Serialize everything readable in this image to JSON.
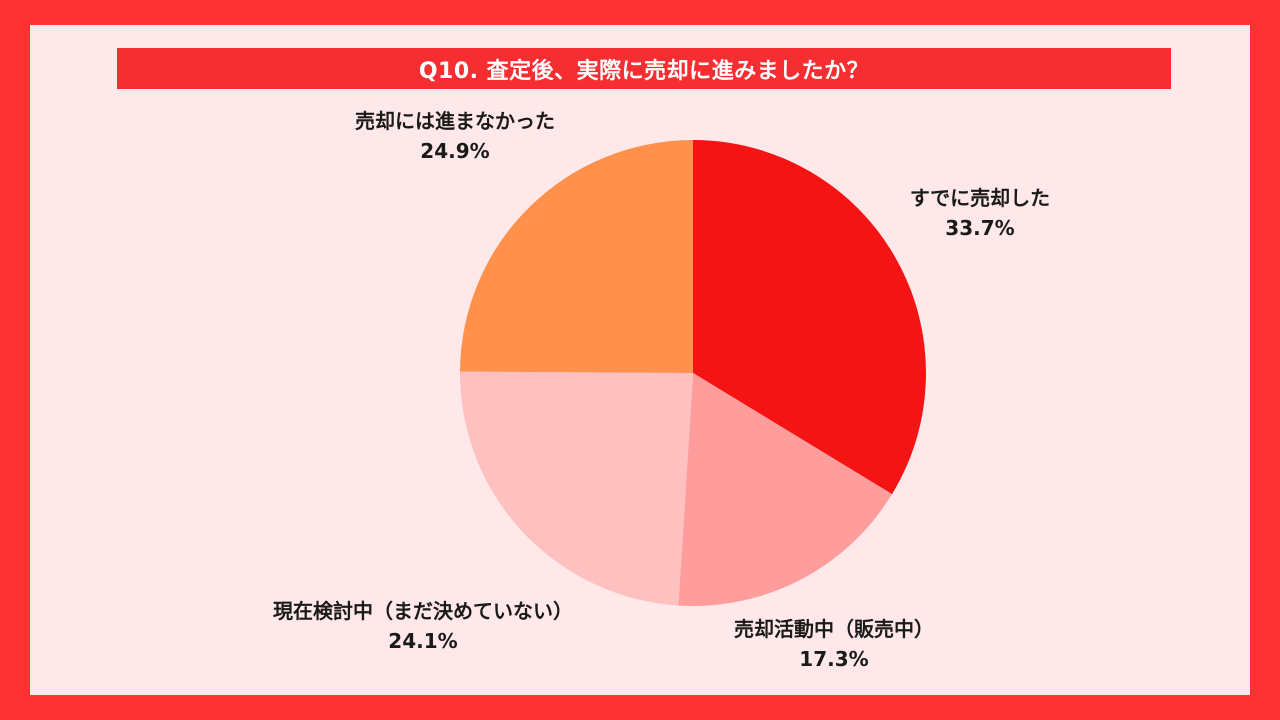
{
  "title": "Q10. 査定後、実際に売却に進みましたか？",
  "colors": {
    "frame": "#ff3333",
    "panel": "#ffe8e9",
    "title_bar": "#f72e31"
  },
  "chart_data": {
    "type": "pie",
    "title": "Q10. 査定後、実際に売却に進みましたか？",
    "slices": [
      {
        "label": "すでに売却した",
        "value": 33.7,
        "display": "33.7%",
        "color": "#f51414"
      },
      {
        "label": "売却活動中（販売中）",
        "value": 17.3,
        "display": "17.3%",
        "color": "#ff9c9c"
      },
      {
        "label": "現在検討中（まだ決めていない）",
        "value": 24.1,
        "display": "24.1%",
        "color": "#ffc0c0"
      },
      {
        "label": "売却には進まなかった",
        "value": 24.9,
        "display": "24.9%",
        "color": "#ff914d"
      }
    ],
    "start_angle": "12 o'clock",
    "direction": "clockwise"
  }
}
